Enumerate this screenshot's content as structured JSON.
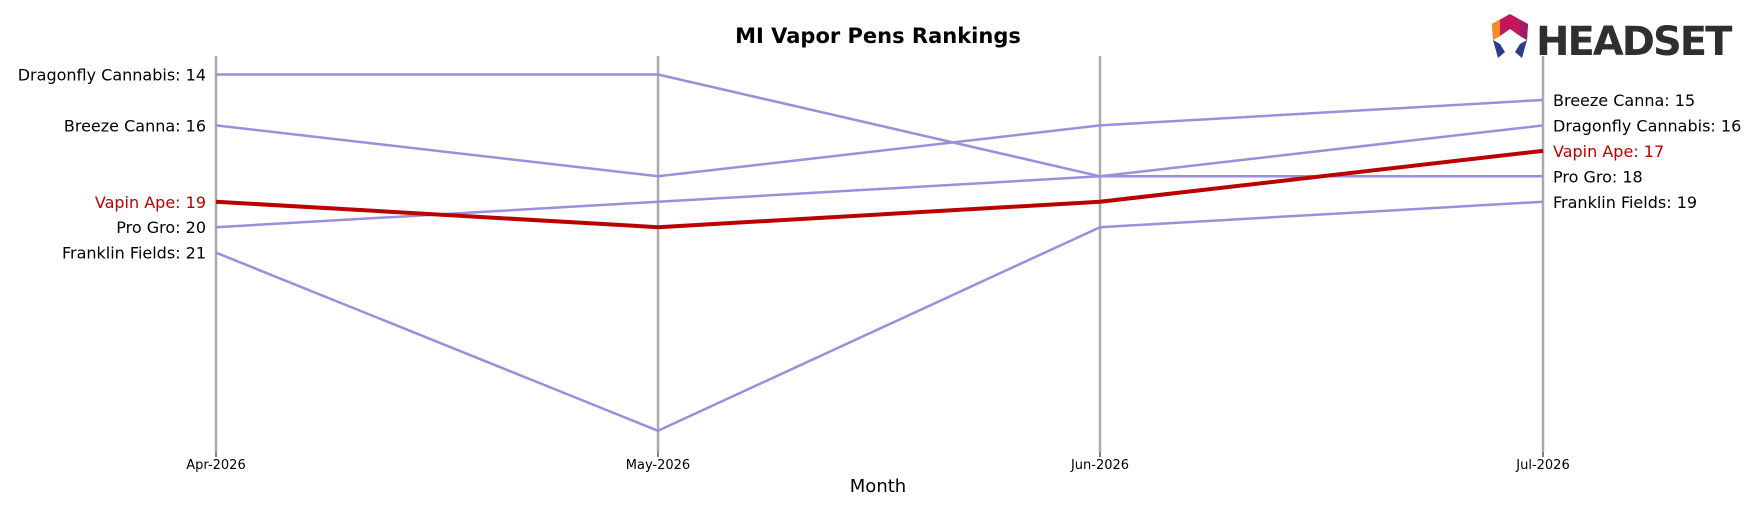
{
  "chart_data": {
    "type": "line",
    "title": "MI Vapor Pens Rankings",
    "xlabel": "Month",
    "ylabel": "",
    "categories": [
      "Apr-2026",
      "May-2026",
      "Jun-2026",
      "Jul-2026"
    ],
    "y_inverted": true,
    "ylim": [
      13,
      29
    ],
    "grid": false,
    "highlight_color": "#bb0000",
    "default_color": "#9b8edb",
    "axis_color": "#aaaaaa",
    "series": [
      {
        "name": "Dragonfly Cannabis",
        "values": [
          14,
          14,
          18,
          16
        ],
        "highlight": false,
        "start_label": "Dragonfly Cannabis: 14",
        "end_label": "Dragonfly Cannabis: 16"
      },
      {
        "name": "Breeze Canna",
        "values": [
          16,
          18,
          16,
          15
        ],
        "highlight": false,
        "start_label": "Breeze Canna: 16",
        "end_label": "Breeze Canna: 15"
      },
      {
        "name": "Vapin Ape",
        "values": [
          19,
          20,
          19,
          17
        ],
        "highlight": true,
        "start_label": "Vapin Ape: 19",
        "end_label": "Vapin Ape: 17"
      },
      {
        "name": "Pro Gro",
        "values": [
          20,
          19,
          18,
          18
        ],
        "highlight": false,
        "start_label": "Pro Gro: 20",
        "end_label": "Pro Gro: 18"
      },
      {
        "name": "Franklin Fields",
        "values": [
          21,
          28,
          20,
          19
        ],
        "highlight": false,
        "start_label": "Franklin Fields: 21",
        "end_label": "Franklin Fields: 19"
      }
    ]
  },
  "logo": {
    "text": "HEADSET"
  }
}
